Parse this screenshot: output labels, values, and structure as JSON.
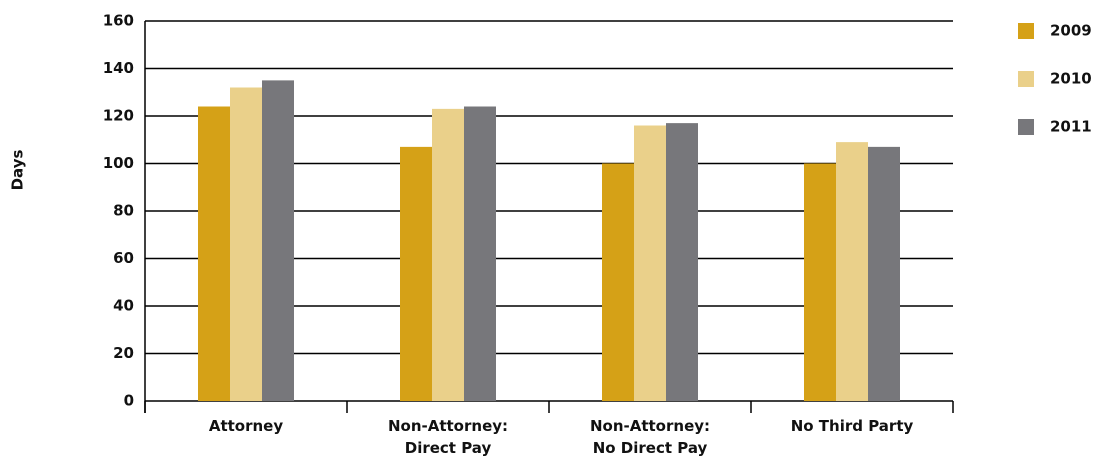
{
  "chart_data": {
    "type": "bar",
    "y_label": "Days",
    "categories": [
      [
        "Attorney"
      ],
      [
        "Non-Attorney:",
        "Direct Pay"
      ],
      [
        "Non-Attorney:",
        "No Direct Pay"
      ],
      [
        "No Third Party"
      ]
    ],
    "series": [
      {
        "name": "2009",
        "color": "#d5a117",
        "values": [
          124,
          107,
          100,
          100
        ]
      },
      {
        "name": "2010",
        "color": "#ead08a",
        "values": [
          132,
          123,
          116,
          109
        ]
      },
      {
        "name": "2011",
        "color": "#77777b",
        "values": [
          135,
          124,
          117,
          107
        ]
      }
    ],
    "ylim": [
      0,
      160
    ],
    "yticks": [
      0,
      20,
      40,
      60,
      80,
      100,
      120,
      140,
      160
    ],
    "grid": true
  }
}
